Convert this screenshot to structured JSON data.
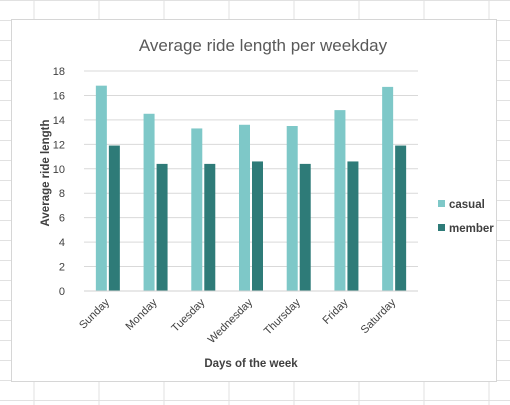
{
  "chart_data": {
    "type": "bar",
    "title": "Average ride length  per weekday",
    "xlabel": "Days of the week",
    "ylabel": "Average ride length",
    "categories": [
      "Sunday",
      "Monday",
      "Tuesday",
      "Wednesday",
      "Thursday",
      "Friday",
      "Saturday"
    ],
    "series": [
      {
        "name": "casual",
        "color": "#7ec8c8",
        "values": [
          16.8,
          14.5,
          13.3,
          13.6,
          13.5,
          14.8,
          16.7
        ]
      },
      {
        "name": "member",
        "color": "#2e7b78",
        "values": [
          11.9,
          10.4,
          10.4,
          10.6,
          10.4,
          10.6,
          11.9
        ]
      }
    ],
    "ylim": [
      0,
      18
    ],
    "yticks": [
      "0",
      "2",
      "4",
      "6",
      "8",
      "10",
      "12",
      "14",
      "16",
      "18"
    ],
    "grid": true,
    "legend_position": "right"
  }
}
